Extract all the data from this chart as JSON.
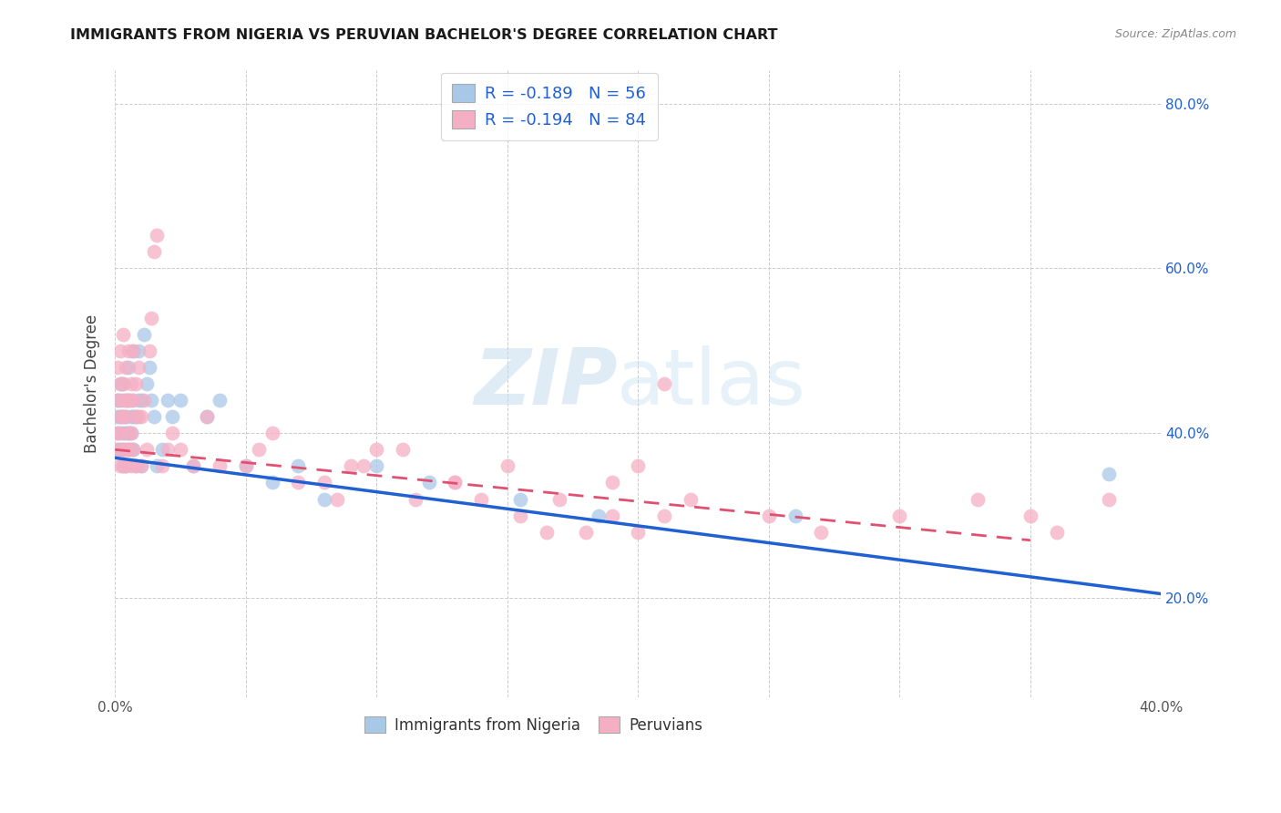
{
  "title": "IMMIGRANTS FROM NIGERIA VS PERUVIAN BACHELOR'S DEGREE CORRELATION CHART",
  "source": "Source: ZipAtlas.com",
  "ylabel": "Bachelor's Degree",
  "xlim": [
    0.0,
    0.4
  ],
  "ylim": [
    0.08,
    0.84
  ],
  "yticks": [
    0.2,
    0.4,
    0.6,
    0.8
  ],
  "yticklabels": [
    "20.0%",
    "40.0%",
    "60.0%",
    "80.0%"
  ],
  "xtick_positions": [
    0.0,
    0.05,
    0.1,
    0.15,
    0.2,
    0.25,
    0.3,
    0.35,
    0.4
  ],
  "xticklabels": [
    "0.0%",
    "",
    "",
    "",
    "",
    "",
    "",
    "",
    "40.0%"
  ],
  "blue_scatter_color": "#a8c8e8",
  "pink_scatter_color": "#f5afc4",
  "blue_line_color": "#2060d0",
  "pink_line_color": "#e05070",
  "watermark_zip": "ZIP",
  "watermark_atlas": "atlas",
  "blue_line_x0": 0.0,
  "blue_line_x1": 0.4,
  "blue_line_y0": 0.37,
  "blue_line_y1": 0.205,
  "pink_line_x0": 0.0,
  "pink_line_x1": 0.35,
  "pink_line_y0": 0.38,
  "pink_line_y1": 0.27,
  "blue_x": [
    0.001,
    0.001,
    0.001,
    0.001,
    0.002,
    0.002,
    0.002,
    0.002,
    0.003,
    0.003,
    0.003,
    0.003,
    0.003,
    0.004,
    0.004,
    0.004,
    0.004,
    0.005,
    0.005,
    0.005,
    0.005,
    0.006,
    0.006,
    0.006,
    0.007,
    0.007,
    0.007,
    0.008,
    0.008,
    0.009,
    0.009,
    0.01,
    0.01,
    0.011,
    0.012,
    0.013,
    0.014,
    0.015,
    0.016,
    0.018,
    0.02,
    0.022,
    0.025,
    0.03,
    0.035,
    0.04,
    0.05,
    0.06,
    0.07,
    0.08,
    0.1,
    0.12,
    0.155,
    0.185,
    0.26,
    0.38
  ],
  "blue_y": [
    0.38,
    0.4,
    0.42,
    0.44,
    0.38,
    0.42,
    0.44,
    0.46,
    0.36,
    0.38,
    0.4,
    0.42,
    0.46,
    0.36,
    0.4,
    0.42,
    0.44,
    0.38,
    0.4,
    0.44,
    0.48,
    0.38,
    0.4,
    0.42,
    0.38,
    0.42,
    0.5,
    0.36,
    0.42,
    0.44,
    0.5,
    0.36,
    0.44,
    0.52,
    0.46,
    0.48,
    0.44,
    0.42,
    0.36,
    0.38,
    0.44,
    0.42,
    0.44,
    0.36,
    0.42,
    0.44,
    0.36,
    0.34,
    0.36,
    0.32,
    0.36,
    0.34,
    0.32,
    0.3,
    0.3,
    0.35
  ],
  "pink_x": [
    0.001,
    0.001,
    0.001,
    0.001,
    0.002,
    0.002,
    0.002,
    0.002,
    0.002,
    0.003,
    0.003,
    0.003,
    0.003,
    0.003,
    0.003,
    0.004,
    0.004,
    0.004,
    0.004,
    0.004,
    0.005,
    0.005,
    0.005,
    0.005,
    0.006,
    0.006,
    0.006,
    0.006,
    0.007,
    0.007,
    0.007,
    0.008,
    0.008,
    0.008,
    0.009,
    0.009,
    0.01,
    0.01,
    0.011,
    0.012,
    0.013,
    0.014,
    0.015,
    0.016,
    0.018,
    0.02,
    0.022,
    0.025,
    0.03,
    0.035,
    0.04,
    0.05,
    0.055,
    0.06,
    0.07,
    0.08,
    0.095,
    0.11,
    0.13,
    0.15,
    0.17,
    0.19,
    0.21,
    0.22,
    0.25,
    0.27,
    0.3,
    0.33,
    0.35,
    0.36,
    0.38,
    0.2,
    0.21,
    0.085,
    0.09,
    0.1,
    0.115,
    0.13,
    0.14,
    0.155,
    0.165,
    0.18,
    0.19,
    0.2
  ],
  "pink_y": [
    0.38,
    0.4,
    0.44,
    0.48,
    0.36,
    0.4,
    0.42,
    0.46,
    0.5,
    0.36,
    0.38,
    0.42,
    0.44,
    0.46,
    0.52,
    0.36,
    0.38,
    0.42,
    0.44,
    0.48,
    0.38,
    0.4,
    0.44,
    0.5,
    0.36,
    0.4,
    0.44,
    0.46,
    0.38,
    0.44,
    0.5,
    0.36,
    0.42,
    0.46,
    0.42,
    0.48,
    0.36,
    0.42,
    0.44,
    0.38,
    0.5,
    0.54,
    0.62,
    0.64,
    0.36,
    0.38,
    0.4,
    0.38,
    0.36,
    0.42,
    0.36,
    0.36,
    0.38,
    0.4,
    0.34,
    0.34,
    0.36,
    0.38,
    0.34,
    0.36,
    0.32,
    0.34,
    0.3,
    0.32,
    0.3,
    0.28,
    0.3,
    0.32,
    0.3,
    0.28,
    0.32,
    0.36,
    0.46,
    0.32,
    0.36,
    0.38,
    0.32,
    0.34,
    0.32,
    0.3,
    0.28,
    0.28,
    0.3,
    0.28
  ]
}
